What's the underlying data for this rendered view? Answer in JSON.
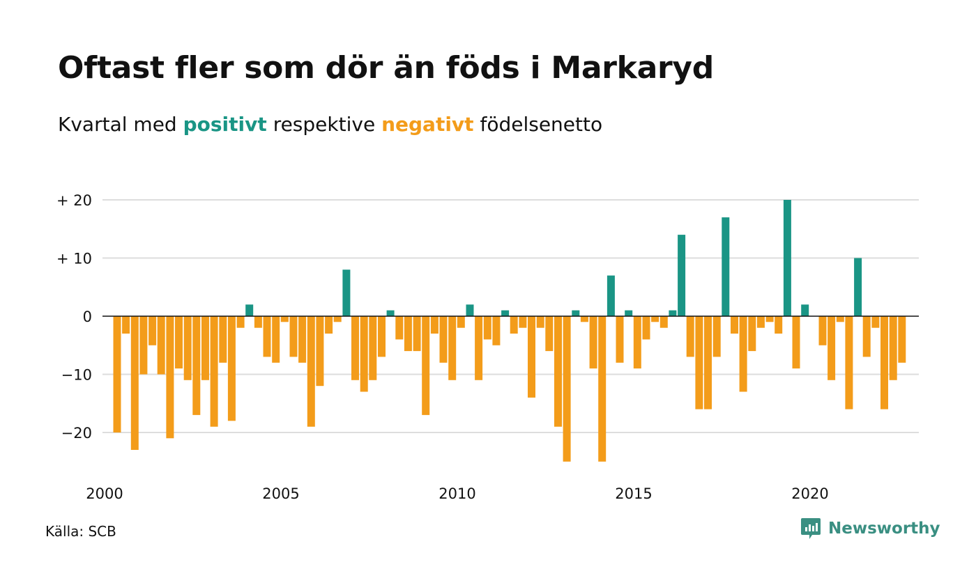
{
  "header": {
    "title": "Oftast fler som dör än föds i Markaryd",
    "subtitle_prefix": "Kvartal med",
    "subtitle_positive": "positivt",
    "subtitle_middle": "respektive",
    "subtitle_negative": "negativt",
    "subtitle_suffix": "födelsenetto"
  },
  "footer": {
    "source": "Källa: SCB",
    "brand": "Newsworthy",
    "brand_icon": "newsworthy-logo-icon"
  },
  "colors": {
    "positive": "#1a9585",
    "negative": "#f39c1a",
    "grid": "#dddddd",
    "zero_line": "#111111"
  },
  "chart_data": {
    "type": "bar",
    "title": "Oftast fler som dör än föds i Markaryd",
    "subtitle": "Kvartal med positivt respektive negativt födelsenetto",
    "xlabel": "",
    "ylabel": "",
    "x_start_year": 2000,
    "quarters_per_year": 4,
    "x_ticks": [
      "2000",
      "2005",
      "2010",
      "2015",
      "2020"
    ],
    "y_ticks": [
      {
        "value": 20,
        "label": "+ 20"
      },
      {
        "value": 10,
        "label": "+ 10"
      },
      {
        "value": 0,
        "label": "0"
      },
      {
        "value": -10,
        "label": "−10"
      },
      {
        "value": -20,
        "label": "−20"
      }
    ],
    "ylim": [
      -27,
      20
    ],
    "grid": true,
    "values": [
      -20,
      -3,
      -23,
      -10,
      -5,
      -10,
      -21,
      -9,
      -11,
      -17,
      -11,
      -19,
      -8,
      -18,
      -2,
      2,
      -2,
      -7,
      -8,
      -1,
      -7,
      -8,
      -19,
      -12,
      -3,
      -1,
      8,
      -11,
      -13,
      -11,
      -7,
      1,
      -4,
      -6,
      -6,
      -17,
      -3,
      -8,
      -11,
      -2,
      2,
      -11,
      -4,
      -5,
      1,
      -3,
      -2,
      -14,
      -2,
      -6,
      -19,
      -25,
      1,
      -1,
      -9,
      -25,
      7,
      -8,
      1,
      -9,
      -4,
      -1,
      -2,
      1,
      14,
      -7,
      -16,
      -16,
      -7,
      17,
      -3,
      -13,
      -6,
      -2,
      -1,
      -3,
      20,
      -9,
      2,
      0,
      -5,
      -11,
      -1,
      -16,
      10,
      -7,
      -2,
      -16,
      -11,
      -8
    ]
  }
}
